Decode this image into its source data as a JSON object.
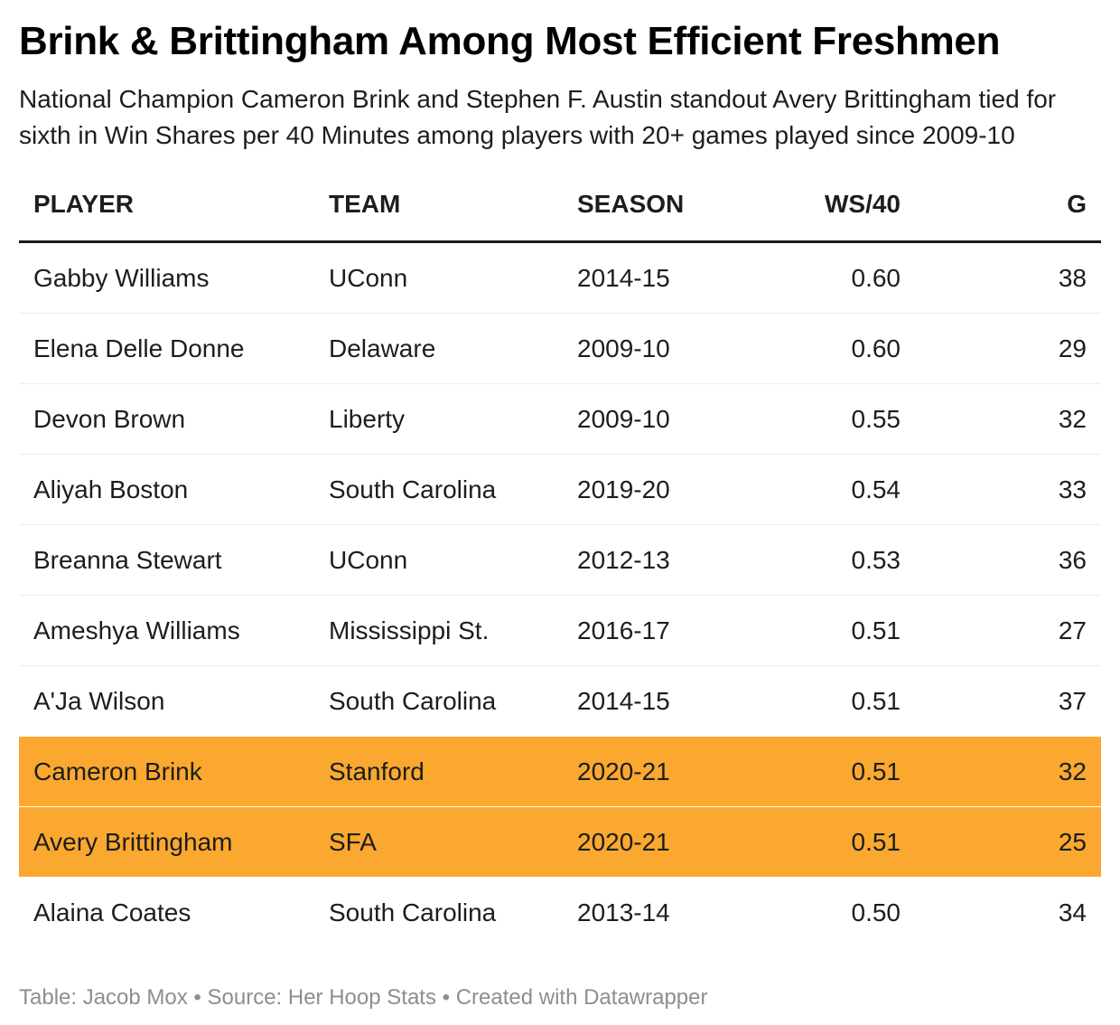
{
  "chart_data": {
    "type": "table",
    "title": "Brink & Brittingham Among Most Efficient Freshmen",
    "subtitle": "National Champion Cameron Brink and Stephen F. Austin standout Avery Brittingham tied for sixth in Win Shares per 40 Minutes among players with 20+ games played since 2009-10",
    "columns": [
      {
        "key": "player",
        "label": "PLAYER",
        "align": "left"
      },
      {
        "key": "team",
        "label": "TEAM",
        "align": "left"
      },
      {
        "key": "season",
        "label": "SEASON",
        "align": "left"
      },
      {
        "key": "ws40",
        "label": "WS/40",
        "align": "right"
      },
      {
        "key": "g",
        "label": "G",
        "align": "right"
      }
    ],
    "rows": [
      {
        "cells": [
          "Gabby Williams",
          "UConn",
          "2014-15",
          "0.60",
          "38"
        ],
        "highlight": false
      },
      {
        "cells": [
          "Elena Delle Donne",
          "Delaware",
          "2009-10",
          "0.60",
          "29"
        ],
        "highlight": false
      },
      {
        "cells": [
          "Devon Brown",
          "Liberty",
          "2009-10",
          "0.55",
          "32"
        ],
        "highlight": false
      },
      {
        "cells": [
          "Aliyah Boston",
          "South Carolina",
          "2019-20",
          "0.54",
          "33"
        ],
        "highlight": false
      },
      {
        "cells": [
          "Breanna Stewart",
          "UConn",
          "2012-13",
          "0.53",
          "36"
        ],
        "highlight": false
      },
      {
        "cells": [
          "Ameshya Williams",
          "Mississippi St.",
          "2016-17",
          "0.51",
          "27"
        ],
        "highlight": false
      },
      {
        "cells": [
          "A'Ja Wilson",
          "South Carolina",
          "2014-15",
          "0.51",
          "37"
        ],
        "highlight": false
      },
      {
        "cells": [
          "Cameron Brink",
          "Stanford",
          "2020-21",
          "0.51",
          "32"
        ],
        "highlight": true
      },
      {
        "cells": [
          "Avery Brittingham",
          "SFA",
          "2020-21",
          "0.51",
          "25"
        ],
        "highlight": true
      },
      {
        "cells": [
          "Alaina Coates",
          "South Carolina",
          "2013-14",
          "0.50",
          "34"
        ],
        "highlight": false
      }
    ]
  },
  "footer": {
    "attribution": "Table: Jacob Mox • Source: Her Hoop Stats • Created with Datawrapper"
  },
  "colors": {
    "highlight": "#FAA82F",
    "header_rule": "#1a1a1a",
    "row_divider": "#ededed",
    "title_text": "#000000",
    "body_text": "#1d1d1d",
    "footer_text": "#8e8e8e"
  }
}
